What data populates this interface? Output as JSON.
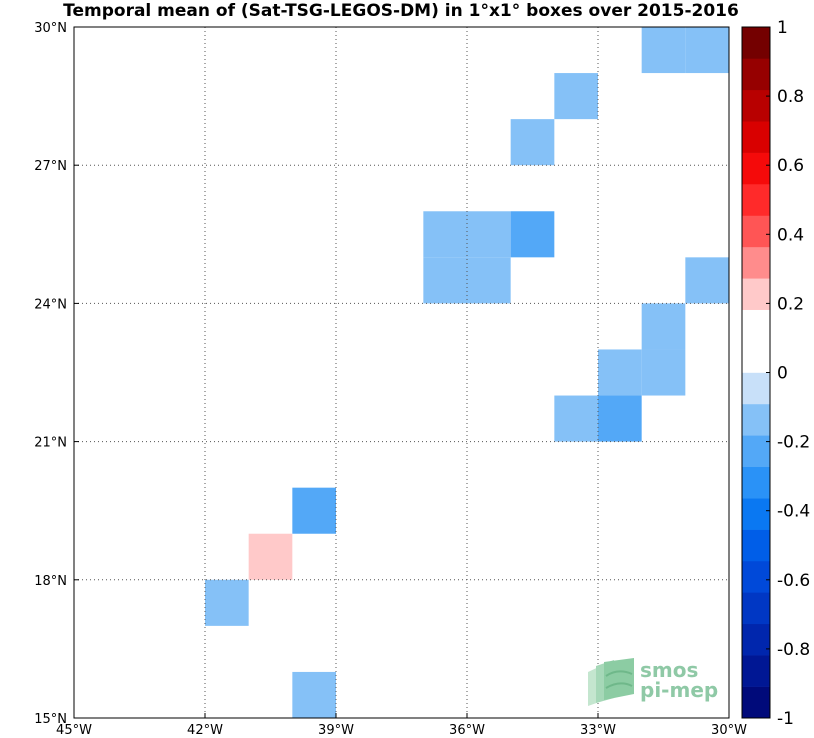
{
  "chart_data": {
    "type": "heatmap",
    "title": "Temporal mean of (Sat-TSG-LEGOS-DM) in 1°x1° boxes over 2015-2016",
    "x_unit": "degrees longitude (negative = West)",
    "y_unit": "degrees latitude (North)",
    "xlim": [
      -45,
      -30
    ],
    "ylim": [
      15,
      30
    ],
    "grid": true,
    "x_ticks": [
      {
        "value": -45,
        "label": "45°W"
      },
      {
        "value": -42,
        "label": "42°W"
      },
      {
        "value": -39,
        "label": "39°W"
      },
      {
        "value": -36,
        "label": "36°W"
      },
      {
        "value": -33,
        "label": "33°W"
      },
      {
        "value": -30,
        "label": "30°W"
      }
    ],
    "y_ticks": [
      {
        "value": 15,
        "label": "15°N"
      },
      {
        "value": 18,
        "label": "18°N"
      },
      {
        "value": 21,
        "label": "21°N"
      },
      {
        "value": 24,
        "label": "24°N"
      },
      {
        "value": 27,
        "label": "27°N"
      },
      {
        "value": 30,
        "label": "30°N"
      }
    ],
    "colorbar": {
      "range": [
        -1,
        1
      ],
      "ticks": [
        {
          "value": 1,
          "label": "1"
        },
        {
          "value": 0.8,
          "label": "0.8"
        },
        {
          "value": 0.6,
          "label": "0.6"
        },
        {
          "value": 0.4,
          "label": "0.4"
        },
        {
          "value": 0.2,
          "label": "0.2"
        },
        {
          "value": 0,
          "label": "0"
        },
        {
          "value": -0.2,
          "label": "-0.2"
        },
        {
          "value": -0.4,
          "label": "-0.4"
        },
        {
          "value": -0.6,
          "label": "-0.6"
        },
        {
          "value": -0.8,
          "label": "-0.8"
        },
        {
          "value": -1,
          "label": "-1"
        }
      ],
      "colors": [
        "#000a7a",
        "#001794",
        "#0026ad",
        "#0037c4",
        "#0049d9",
        "#005ee8",
        "#0a78f2",
        "#2a92f7",
        "#53a8f7",
        "#85c1f7",
        "#c8e0f9",
        "#ffffff",
        "#ffffff",
        "#ffc9c9",
        "#ff8c8c",
        "#ff5555",
        "#ff2a2a",
        "#f50a0a",
        "#d90000",
        "#b80000",
        "#960000",
        "#740000"
      ]
    },
    "cells": [
      {
        "lon": -32,
        "lat": 29,
        "value": -0.15
      },
      {
        "lon": -31,
        "lat": 29,
        "value": -0.15
      },
      {
        "lon": -34,
        "lat": 28,
        "value": -0.15
      },
      {
        "lon": -35,
        "lat": 27,
        "value": -0.15
      },
      {
        "lon": -37,
        "lat": 25,
        "value": -0.15
      },
      {
        "lon": -36,
        "lat": 25,
        "value": -0.15
      },
      {
        "lon": -35,
        "lat": 25,
        "value": -0.25
      },
      {
        "lon": -37,
        "lat": 24,
        "value": -0.15
      },
      {
        "lon": -36,
        "lat": 24,
        "value": -0.15
      },
      {
        "lon": -31,
        "lat": 24,
        "value": -0.15
      },
      {
        "lon": -32,
        "lat": 23,
        "value": -0.15
      },
      {
        "lon": -33,
        "lat": 22,
        "value": -0.15
      },
      {
        "lon": -32,
        "lat": 22,
        "value": -0.15
      },
      {
        "lon": -34,
        "lat": 21,
        "value": -0.15
      },
      {
        "lon": -33,
        "lat": 21,
        "value": -0.25
      },
      {
        "lon": -40,
        "lat": 19,
        "value": -0.25
      },
      {
        "lon": -41,
        "lat": 18,
        "value": 0.25
      },
      {
        "lon": -42,
        "lat": 17,
        "value": -0.15
      },
      {
        "lon": -38,
        "lat": 17,
        "value": 0.15
      },
      {
        "lon": -40,
        "lat": 15,
        "value": -0.15
      }
    ]
  },
  "logo": {
    "line1": "smos",
    "line2": "pi-mep"
  }
}
